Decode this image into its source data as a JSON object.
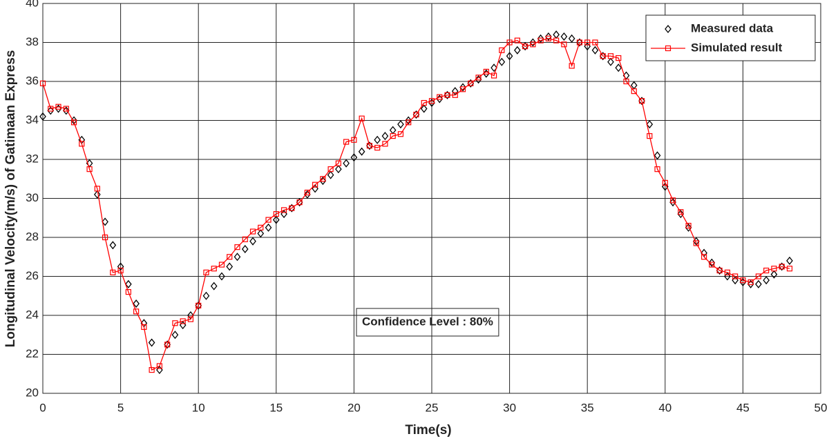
{
  "chart_data": {
    "type": "line",
    "xlabel": "Time(s)",
    "ylabel": "Longitudinal Velocity(m/s) of Gatimaan Express",
    "annotation": "Confidence Level : 80%",
    "x": [
      0,
      0.5,
      1,
      1.5,
      2,
      2.5,
      3,
      3.5,
      4,
      4.5,
      5,
      5.5,
      6,
      6.5,
      7,
      7.5,
      8,
      8.5,
      9,
      9.5,
      10,
      10.5,
      11,
      11.5,
      12,
      12.5,
      13,
      13.5,
      14,
      14.5,
      15,
      15.5,
      16,
      16.5,
      17,
      17.5,
      18,
      18.5,
      19,
      19.5,
      20,
      20.5,
      21,
      21.5,
      22,
      22.5,
      23,
      23.5,
      24,
      24.5,
      25,
      25.5,
      26,
      26.5,
      27,
      27.5,
      28,
      28.5,
      29,
      29.5,
      30,
      30.5,
      31,
      31.5,
      32,
      32.5,
      33,
      33.5,
      34,
      34.5,
      35,
      35.5,
      36,
      36.5,
      37,
      37.5,
      38,
      38.5,
      39,
      39.5,
      40,
      40.5,
      41,
      41.5,
      42,
      42.5,
      43,
      43.5,
      44,
      44.5,
      45,
      45.5,
      46,
      46.5,
      47,
      47.5,
      48
    ],
    "series": [
      {
        "name": "Measured data",
        "color": "#000000",
        "marker": "diamond",
        "line": false,
        "values": [
          34.2,
          34.5,
          34.6,
          34.5,
          34.0,
          33.0,
          31.8,
          30.2,
          28.8,
          27.6,
          26.5,
          25.6,
          24.6,
          23.6,
          22.6,
          21.2,
          22.5,
          23.0,
          23.5,
          24.0,
          24.5,
          25.0,
          25.5,
          26.0,
          26.5,
          27.0,
          27.4,
          27.8,
          28.2,
          28.5,
          28.9,
          29.2,
          29.5,
          29.8,
          30.2,
          30.5,
          30.9,
          31.2,
          31.5,
          31.8,
          32.1,
          32.4,
          32.7,
          33.0,
          33.2,
          33.5,
          33.8,
          34.0,
          34.3,
          34.6,
          34.9,
          35.1,
          35.3,
          35.5,
          35.7,
          35.9,
          36.1,
          36.4,
          36.7,
          37.0,
          37.3,
          37.6,
          37.8,
          38.0,
          38.2,
          38.3,
          38.4,
          38.3,
          38.2,
          38.0,
          37.8,
          37.6,
          37.3,
          37.0,
          36.7,
          36.3,
          35.8,
          35.0,
          33.8,
          32.2,
          30.6,
          29.8,
          29.2,
          28.5,
          27.8,
          27.2,
          26.7,
          26.3,
          26.0,
          25.8,
          25.7,
          25.6,
          25.6,
          25.8,
          26.1,
          26.5,
          26.8
        ]
      },
      {
        "name": "Simulated result",
        "color": "#ff0000",
        "marker": "square",
        "line": true,
        "values": [
          35.9,
          34.6,
          34.7,
          34.6,
          33.9,
          32.8,
          31.5,
          30.5,
          28.0,
          26.2,
          26.3,
          25.2,
          24.2,
          23.4,
          21.2,
          21.4,
          22.5,
          23.6,
          23.7,
          23.8,
          24.5,
          26.2,
          26.4,
          26.6,
          27.0,
          27.5,
          27.9,
          28.3,
          28.5,
          28.9,
          29.2,
          29.4,
          29.5,
          29.8,
          30.3,
          30.7,
          31.0,
          31.5,
          31.8,
          32.9,
          33.0,
          34.1,
          32.7,
          32.6,
          32.8,
          33.2,
          33.3,
          33.9,
          34.3,
          34.9,
          35.0,
          35.2,
          35.3,
          35.3,
          35.6,
          35.9,
          36.2,
          36.5,
          36.3,
          37.6,
          38.0,
          38.1,
          37.8,
          37.9,
          38.1,
          38.2,
          38.1,
          37.9,
          36.8,
          38.0,
          38.0,
          38.0,
          37.3,
          37.3,
          37.2,
          36.0,
          35.5,
          35.0,
          33.2,
          31.5,
          30.8,
          29.9,
          29.3,
          28.6,
          27.7,
          27.0,
          26.6,
          26.3,
          26.2,
          26.0,
          25.8,
          25.7,
          26.0,
          26.3,
          26.4,
          26.5,
          26.4
        ]
      }
    ],
    "xlim": [
      0,
      50
    ],
    "xticks": [
      0,
      5,
      10,
      15,
      20,
      25,
      30,
      35,
      40,
      45,
      50
    ],
    "ylim": [
      20,
      40
    ],
    "yticks": [
      20,
      22,
      24,
      26,
      28,
      30,
      32,
      34,
      36,
      38,
      40
    ],
    "grid": true,
    "legend": "upper right"
  }
}
